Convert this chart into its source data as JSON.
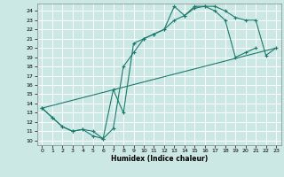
{
  "xlabel": "Humidex (Indice chaleur)",
  "bg_color": "#cce8e4",
  "line_color": "#1a7a6e",
  "grid_color": "#ffffff",
  "xlim": [
    -0.5,
    23.5
  ],
  "ylim": [
    9.5,
    24.8
  ],
  "xticks": [
    0,
    1,
    2,
    3,
    4,
    5,
    6,
    7,
    8,
    9,
    10,
    11,
    12,
    13,
    14,
    15,
    16,
    17,
    18,
    19,
    20,
    21,
    22,
    23
  ],
  "yticks": [
    10,
    11,
    12,
    13,
    14,
    15,
    16,
    17,
    18,
    19,
    20,
    21,
    22,
    23,
    24
  ],
  "line1_x": [
    0,
    1,
    2,
    3,
    4,
    5,
    6,
    7,
    8,
    9,
    10,
    11,
    12,
    13,
    14,
    15,
    16,
    17,
    18,
    19,
    20,
    21
  ],
  "line1_y": [
    13.5,
    12.5,
    11.5,
    11.0,
    11.2,
    10.5,
    10.2,
    15.5,
    13.0,
    20.5,
    21.0,
    21.5,
    22.0,
    24.5,
    23.5,
    24.5,
    24.5,
    24.0,
    23.0,
    19.0,
    19.5,
    20.0
  ],
  "line2_x": [
    0,
    1,
    2,
    3,
    4,
    5,
    6,
    7,
    8,
    9,
    10,
    11,
    12,
    13,
    14,
    15,
    16,
    17,
    18,
    19,
    20,
    21,
    22,
    23
  ],
  "line2_y": [
    13.5,
    12.5,
    11.5,
    11.0,
    11.2,
    11.0,
    10.2,
    11.3,
    18.0,
    19.5,
    21.0,
    21.5,
    22.0,
    23.0,
    23.5,
    24.3,
    24.5,
    24.5,
    24.0,
    23.3,
    23.0,
    23.0,
    19.2,
    20.0
  ],
  "line3_x": [
    0,
    23
  ],
  "line3_y": [
    13.5,
    20.0
  ]
}
